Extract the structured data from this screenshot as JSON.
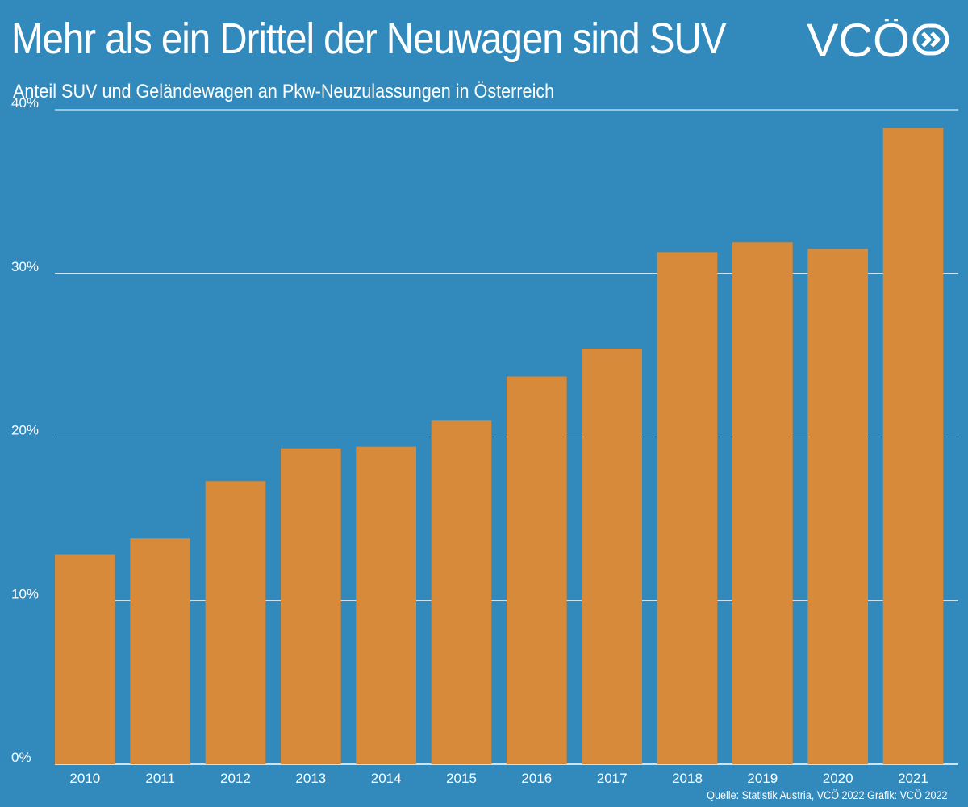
{
  "header": {
    "title": "Mehr als ein Drittel der Neuwagen sind SUV",
    "subtitle": "Anteil SUV und Geländewagen an Pkw-Neuzulassungen in Österreich",
    "logo_text": "VCÖ"
  },
  "footer": {
    "source": "Quelle: Statistik Austria, VCÖ 2022 Grafik: VCÖ 2022"
  },
  "colors": {
    "background": "#3289bb",
    "bar": "#d68a3a",
    "grid": "#ffffff"
  },
  "chart_data": {
    "type": "bar",
    "categories": [
      "2010",
      "2011",
      "2012",
      "2013",
      "2014",
      "2015",
      "2016",
      "2017",
      "2018",
      "2019",
      "2020",
      "2021"
    ],
    "values": [
      12.8,
      13.8,
      17.3,
      19.3,
      19.4,
      21.0,
      23.7,
      25.4,
      31.3,
      31.9,
      31.5,
      38.9
    ],
    "unit": "%",
    "ylim": [
      0,
      40
    ],
    "yticks": [
      0,
      10,
      20,
      30,
      40
    ],
    "ytick_labels": [
      "0%",
      "10%",
      "20%",
      "30%",
      "40%"
    ],
    "grid": true,
    "xlabel": "",
    "ylabel": ""
  }
}
